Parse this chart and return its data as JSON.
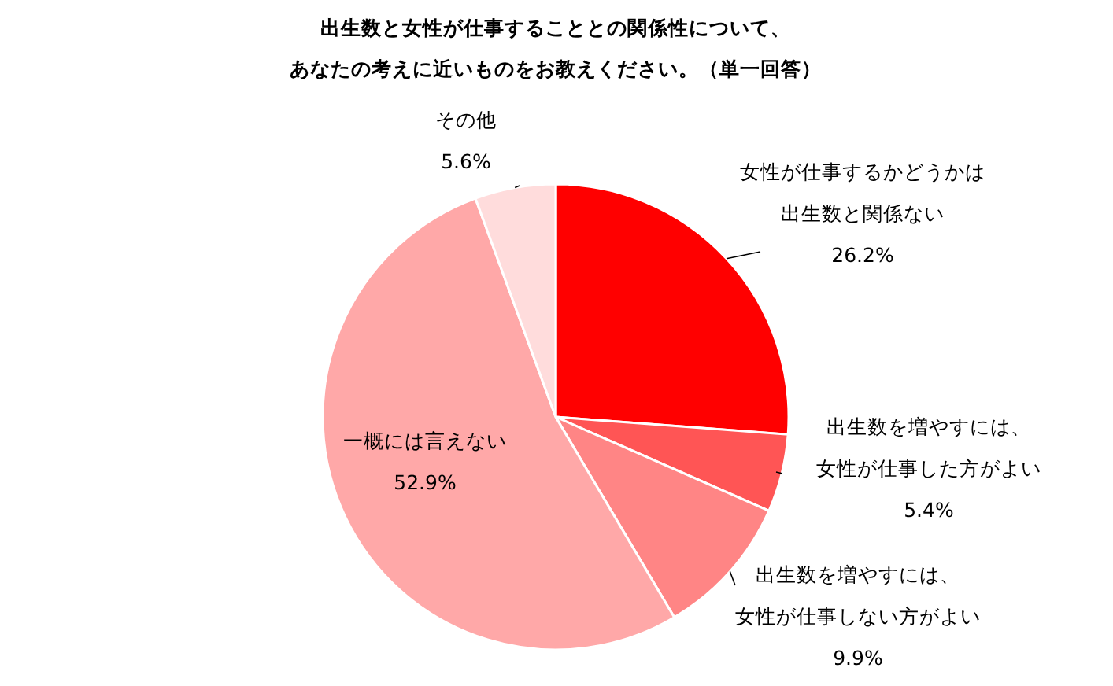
{
  "chart_data": {
    "type": "pie",
    "title": "出生数と女性が仕事することとの関係性について、あなたの考えに近いものをお教えください。（単一回答）",
    "categories": [
      "女性が仕事するかどうかは出生数と関係ない",
      "出生数を増やすには、女性が仕事した方がよい",
      "出生数を増やすには、女性が仕事しない方がよい",
      "一概には言えない",
      "その他"
    ],
    "values": [
      26.2,
      5.4,
      9.9,
      52.9,
      5.6
    ],
    "colors": [
      "#ff0000",
      "#ff5555",
      "#ff8585",
      "#ffa8a8",
      "#ffdcdc"
    ],
    "value_labels": [
      "26.2%",
      "5.4%",
      "9.9%",
      "52.9%",
      "5.6%"
    ],
    "legend": false
  }
}
